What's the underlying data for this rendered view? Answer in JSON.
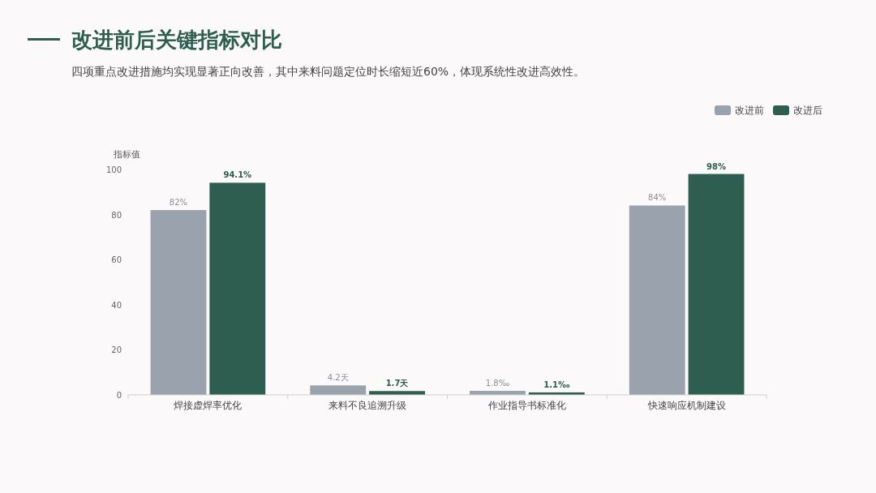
{
  "chart_data": {
    "type": "bar",
    "title": "改进前后关键指标对比",
    "subtitle": "四项重点改进措施均实现显著正向改善，其中来料问题定位时长缩短近60%，体现系统性改进高效性。",
    "ylabel": "指标值",
    "categories": [
      "焊接虚焊率优化",
      "来料不良追溯升级",
      "作业指导书标准化",
      "快速响应机制建设"
    ],
    "series": [
      {
        "name": "改进前",
        "color": "#9aa3ad",
        "values": [
          82,
          4.2,
          1.8,
          84
        ],
        "value_labels": [
          "82%",
          "4.2天",
          "1.8‰",
          "84%"
        ]
      },
      {
        "name": "改进后",
        "color": "#2d5e4f",
        "values": [
          94.1,
          1.7,
          1.1,
          98
        ],
        "value_labels": [
          "94.1%",
          "1.7天",
          "1.1‰",
          "98%"
        ]
      }
    ],
    "ylim": [
      0,
      100
    ],
    "yticks": [
      0,
      20,
      40,
      60,
      80,
      100
    ],
    "legend": "top right"
  }
}
